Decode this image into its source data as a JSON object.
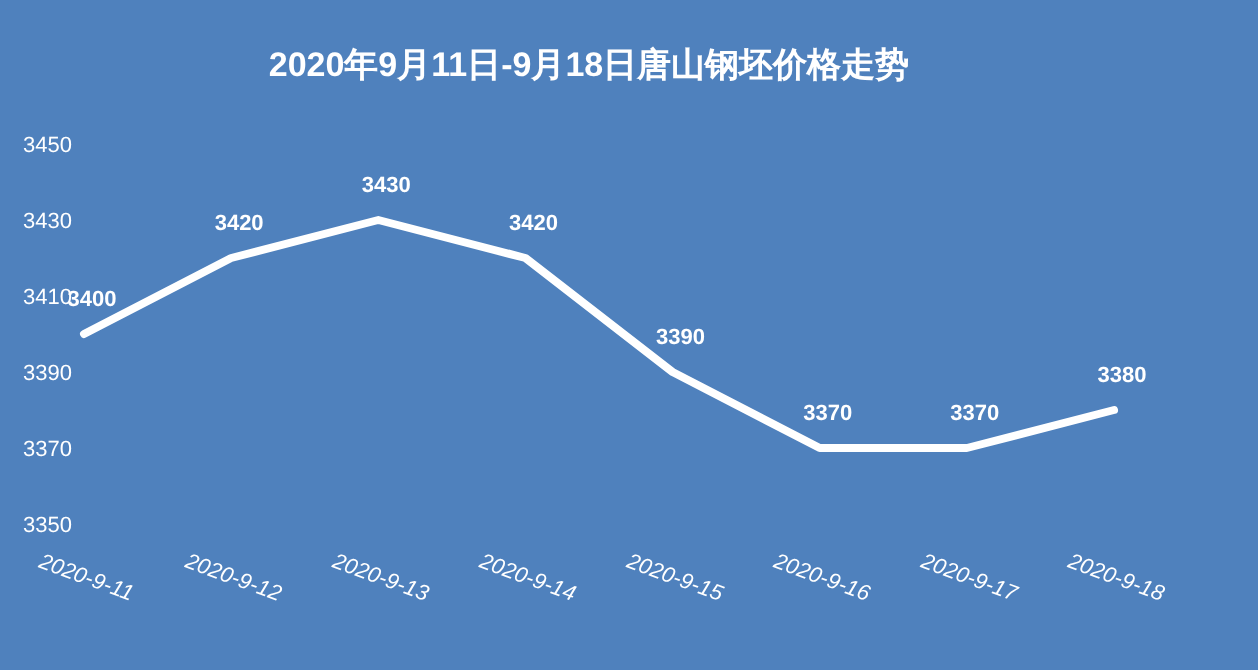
{
  "chart_data": {
    "type": "line",
    "title": "2020年9月11日-9月18日唐山钢坯价格走势",
    "categories": [
      "2020-9-11",
      "2020-9-12",
      "2020-9-13",
      "2020-9-14",
      "2020-9-15",
      "2020-9-16",
      "2020-9-17",
      "2020-9-18"
    ],
    "series": [
      {
        "color": "#ffffff",
        "values": [
          3400,
          3420,
          3430,
          3420,
          3390,
          3370,
          3370,
          3380
        ]
      }
    ],
    "ylim": [
      3350,
      3450
    ],
    "yticks": [
      3350,
      3370,
      3390,
      3410,
      3430,
      3450
    ],
    "data_labels": true,
    "grid": false,
    "marker": "none",
    "line_style": "solid"
  }
}
